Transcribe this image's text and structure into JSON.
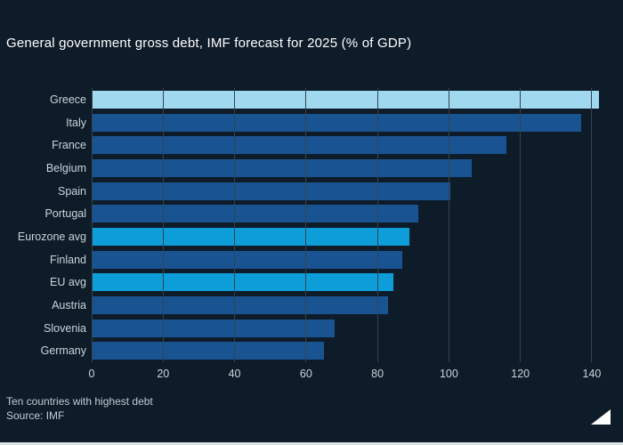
{
  "title": "General government gross debt, IMF forecast for 2025 (% of GDP)",
  "footer": {
    "note": "Ten countries with highest debt",
    "source": "Source: IMF"
  },
  "colors": {
    "background": "#0e1c2a",
    "bar_default": "#1a5392",
    "bar_highlight": "#0d9dd9",
    "bar_light": "#9fd8ef",
    "grid": "#33434f",
    "text": "#ffffff",
    "muted_text": "#ccd3d9"
  },
  "chart_data": {
    "type": "bar",
    "orientation": "horizontal",
    "title": "General government gross debt, IMF forecast for 2025 (% of GDP)",
    "categories": [
      "Greece",
      "Italy",
      "France",
      "Belgium",
      "Spain",
      "Portugal",
      "Eurozone avg",
      "Finland",
      "EU avg",
      "Austria",
      "Slovenia",
      "Germany"
    ],
    "values": [
      142,
      137,
      116,
      106.5,
      100.5,
      91.5,
      89,
      87,
      84.5,
      83,
      68,
      65
    ],
    "bar_styles": [
      "light",
      "default",
      "default",
      "default",
      "default",
      "default",
      "highlight",
      "default",
      "highlight",
      "default",
      "default",
      "default"
    ],
    "xlabel": "",
    "ylabel": "",
    "x_ticks": [
      0,
      20,
      40,
      60,
      80,
      100,
      120,
      140
    ],
    "xlim": [
      0,
      143
    ],
    "grid": true,
    "legend": false,
    "annotation": "Eurozone avg and EU avg highlighted; Greece (top bar) in light blue"
  }
}
